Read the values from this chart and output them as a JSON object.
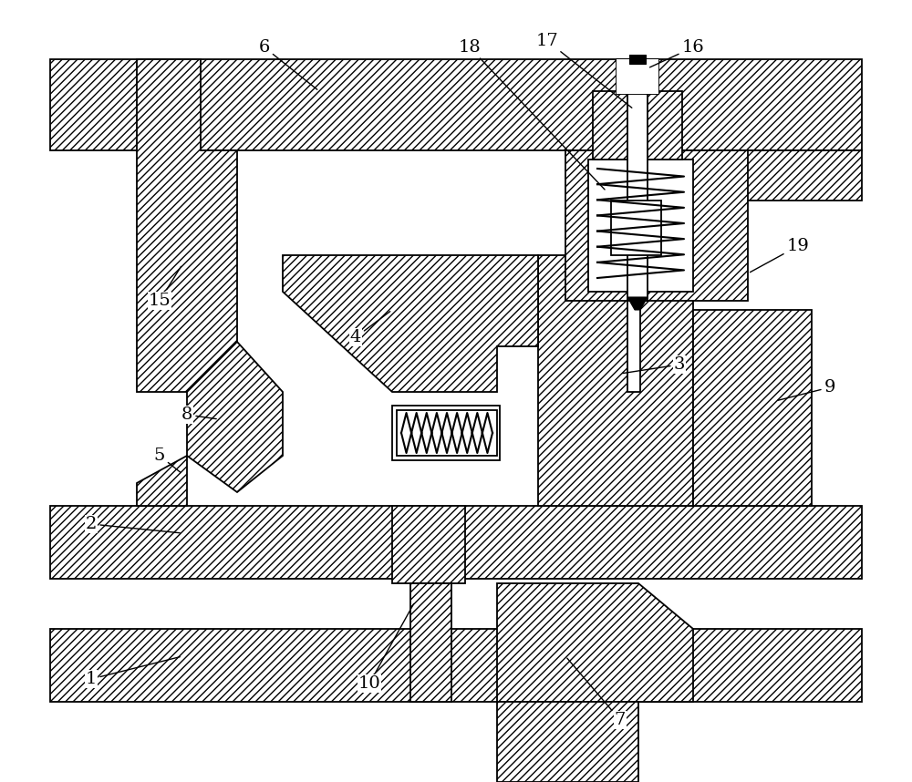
{
  "bg_color": "#ffffff",
  "line_color": "#000000",
  "fig_width": 10.0,
  "fig_height": 8.58,
  "hatch": "////",
  "lw": 1.3
}
